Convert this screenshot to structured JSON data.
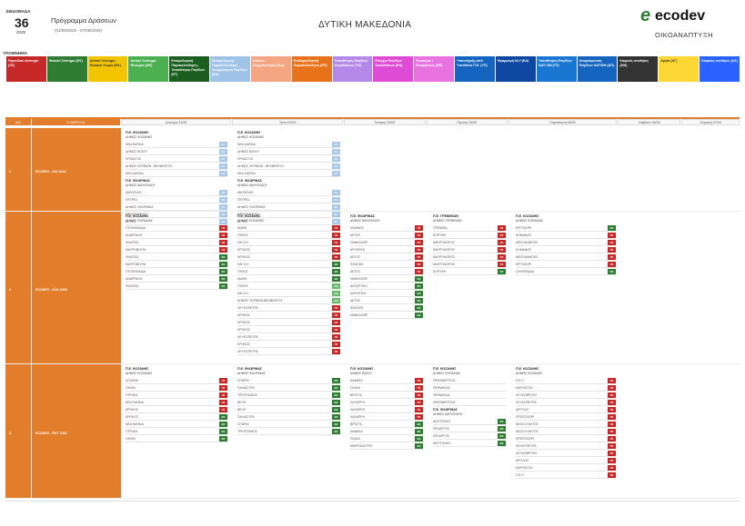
{
  "header": {
    "week_label": "ΕΒΔΟΜΑΔΑ",
    "week_number": "36",
    "year": "2025",
    "program_title": "Πρόγραμμα Δράσεων",
    "date_range": "(01/09/2025 - 07/09/2025)",
    "region": "ΔΥΤΙΚΗ ΜΑΚΕΔΟΝΙΑ"
  },
  "logo": {
    "brand": "ecodev",
    "subtitle": "ΟΙΚΟΑΝΑΠΤΥΞΗ",
    "color": "#2e7d32"
  },
  "legend": {
    "title": "ΥΠΟΜΝΗΜΑ",
    "items": [
      {
        "label": "Περιοδικό σύστημα (ΠΣ)",
        "color": "#c62828"
      },
      {
        "label": "Φυσικό Σύστημα (ΦΣ)",
        "color": "#2e7d32"
      },
      {
        "label": "Αστικό Σύστημα - Φυσικοί Χώροι (ΦΧ)",
        "color": "#f2c500"
      },
      {
        "label": "Αστικό Σύστημα - Φυτώρια (ΑΦ)",
        "color": "#4caf50"
      },
      {
        "label": "Εντομολογική Παρακολούθηση - Τοποθέτηση Παγίδων (ΕΤ)",
        "color": "#1b5e20"
      },
      {
        "label": "Εντομολογική Παρακολούθηση - Αναρρόφηση Παγίδων (ΕΑ)",
        "color": "#9ec3e6"
      },
      {
        "label": "Κόκκοι / Δειγματοληψία (ΚΔ)",
        "color": "#f4a582"
      },
      {
        "label": "Επιδημιολογική Παρακολούθηση (ΕΠ)",
        "color": "#e8731a"
      },
      {
        "label": "Τοποθέτηση Παγίδων Ωοκαθίσεων (ΤΩ)",
        "color": "#b388e8"
      },
      {
        "label": "Ελεγχοι Παγίδων Ωοκαθίσεων (ΕΩ)",
        "color": "#e04bd6"
      },
      {
        "label": "Ψεκασμοί / Επεμβάσεις (ΨΕ)",
        "color": "#e873e0"
      },
      {
        "label": "Υποστήριξη από Υπεύθυνο Π.Ε. (ΥΠ)",
        "color": "#1565c0"
      },
      {
        "label": "Εφαρμογή ULV (ΕΑ)",
        "color": "#0d47a1"
      },
      {
        "label": "Τοποθέτηση Παγίδων GAT/ SM (ΤΠ)",
        "color": "#1976d2"
      },
      {
        "label": "Απομάκρυνση Παγίδων GAT/SM (ΑΠ)",
        "color": "#1565c0"
      },
      {
        "label": "Καιρικές συνθήκες (ΚΜ)",
        "color": "#333333"
      },
      {
        "label": "Αργία (ΑΓ)",
        "color": "#fdd835"
      },
      {
        "label": "Καιρικές συνθήκες (ΚΣ)",
        "color": "#2962ff"
      }
    ]
  },
  "table": {
    "headers": [
      "Α/Α",
      "ΣΥΝΕΡΓΕΙΟ",
      "Δευτέρα 01/09",
      "Τρίτη 02/09",
      "Τετάρτη 03/09",
      "Πέμπτη 04/09",
      "Παρασκευή 05/09",
      "Σάββατο 06/09",
      "Κυριακή 07/09"
    ],
    "rows": [
      {
        "aa": "1",
        "group": "ECODEV - ΚΙΑ 9144"
      },
      {
        "aa": "2",
        "group": "ECODEV - ΚΖΑ 6494"
      },
      {
        "aa": "3",
        "group": "ECODEV - ΕΚΤ 7363"
      }
    ]
  },
  "cells": {
    "r1d1": [
      {
        "h": "Π.Ε. ΚΟΖΑΝΗΣ",
        "s": "ΔΗΜΟΣ ΚΟΖΑΝΗΣ",
        "items": [
          [
            "ΝΕΑ ΚΑΡΔΙΑ",
            "ΕΑ"
          ],
          [
            "ΔΗΜΟΣ ΒΟΙΟΥ",
            "ΕΑ"
          ],
          [
            "ΠΡΟΑΣΤΙΟ",
            "ΕΑ"
          ],
          [
            "ΔΗΜΟΣ ΣΕΡΒΙΩΝ - ΒΕΛΒΕΝΤΟΥ",
            "ΕΑ"
          ],
          [
            "ΝΕΑ ΚΑΡΔΙΑ",
            "ΕΑ"
          ]
        ]
      },
      {
        "h": "Π.Ε. ΦΛΩΡΙΝΑΣ",
        "s": "ΔΗΜΟΣ ΑΜΥΝΤΑΙΟΥ",
        "items": [
          [
            "ΑΜΥΝΤΑΙΟ",
            "ΕΑ"
          ],
          [
            "ΠΕΤΡΕΣ",
            "ΕΑ"
          ],
          [
            "ΔΗΜΟΣ ΦΛΩΡΙΝΑΣ",
            "ΕΑ"
          ],
          [
            "ΜΕΣΟΚΑΜΠΟΣ",
            "ΕΑ"
          ],
          [
            "ΑΕΤΟΣ",
            "ΕΑ"
          ]
        ]
      }
    ],
    "r1d2": [
      {
        "h": "Π.Ε. ΚΟΖΑΝΗΣ",
        "s": "ΔΗΜΟΣ ΚΟΖΑΝΗΣ",
        "items": [
          [
            "ΝΕΑ ΚΑΡΔΙΑ",
            "ΕΑ"
          ],
          [
            "ΔΗΜΟΣ ΒΟΙΟΥ",
            "ΕΑ"
          ],
          [
            "ΠΡΟΑΣΤΙΟ",
            "ΕΑ"
          ],
          [
            "ΔΗΜΟΣ ΣΕΡΒΙΩΝ - ΒΕΛΒΕΝΤΟΥ",
            "ΕΑ"
          ],
          [
            "ΝΕΑ ΚΑΡΔΙΑ",
            "ΕΑ"
          ]
        ]
      },
      {
        "h": "Π.Ε. ΦΛΩΡΙΝΑΣ",
        "s": "ΔΗΜΟΣ ΑΜΥΝΤΑΙΟΥ",
        "items": [
          [
            "ΑΜΥΝΤΑΙΟ",
            "ΕΑ"
          ],
          [
            "ΠΕΤΡΕΣ",
            "ΕΑ"
          ],
          [
            "ΔΗΜΟΣ ΦΛΩΡΙΝΑΣ",
            "ΕΑ"
          ],
          [
            "ΜΕΣΟΚΑΜΠΟΣ",
            "ΕΑ"
          ],
          [
            "ΑΕΤΟΣ",
            "ΕΑ"
          ]
        ]
      }
    ],
    "r2d1": [
      {
        "h": "Π.Ε. ΚΟΖΑΝΗΣ",
        "s": "ΔΗΜΟΣ ΕΟΡΔΑΙΑΣ",
        "items": [
          [
            "ΠΤΟΛΕΜΑΙΔΑ",
            "ΠΣ"
          ],
          [
            "ΑΝΑΡΡΑΧΗ",
            "ΠΣ"
          ],
          [
            "ΦΙΛΩΤΑΣ",
            "ΠΣ"
          ],
          [
            "ΜΑΥΡΟΒΟΥΝΙ",
            "ΠΣ"
          ],
          [
            "ΦΙΛΩΤΑΣ",
            "ΦΣ"
          ],
          [
            "ΜΑΥΡΟΒΟΥΝΙ",
            "ΦΣ"
          ],
          [
            "ΠΤΟΛΕΜΑΙΔΑ",
            "ΦΣ"
          ],
          [
            "ΑΝΑΡΡΑΧΗ",
            "ΦΣ"
          ],
          [
            "ΦΙΛΩΤΑΣ",
            "ΦΣ"
          ]
        ]
      }
    ],
    "r2d2": [
      {
        "h": "Π.Ε. ΚΟΖΑΝΗΣ",
        "s": "ΔΗΜΟΣ ΚΟΖΑΝΗΣ",
        "items": [
          [
            "ΑΙΑΝΗ",
            "ΠΣ"
          ],
          [
            "ΓΗΦΟΣ",
            "ΠΣ"
          ],
          [
            "ΚΑΙ ΣΛΙ",
            "ΠΣ"
          ],
          [
            "ΚΡΟΚΟΣ",
            "ΠΣ"
          ],
          [
            "ΚΡΟΚΟΣ",
            "ΠΣ"
          ],
          [
            "ΚΑΙ ΣΛΙ",
            "ΦΣ"
          ],
          [
            "ΓΗΦΟΣ",
            "ΦΣ"
          ],
          [
            "ΑΙΑΝΗ",
            "ΦΣ"
          ],
          [
            "ΓΗΦΟΣ",
            "ΑΦ"
          ],
          [
            "ΚΑΙ ΣΛΙ",
            "ΑΦ"
          ],
          [
            "ΔΗΜΟΣ ΣΕΡΒΙΩΝ-ΒΕΛΒΕΝΤΟΥ",
            "ΑΦ"
          ],
          [
            "ΛΕΥΚΟΠΕΤΡΑ",
            "ΠΣ"
          ],
          [
            "ΚΡΟΚΟΣ",
            "ΠΣ"
          ],
          [
            "ΚΡΟΚΟΣ",
            "ΠΣ"
          ],
          [
            "ΚΡΟΚΟΣ",
            "ΠΣ"
          ],
          [
            "ΛΕΥΚΟΠΕΤΡΑ",
            "ΠΣ"
          ],
          [
            "ΚΡΟΚΟΣ",
            "ΠΣ"
          ],
          [
            "ΛΕΥΚΟΠΕΤΡΑ",
            "ΠΣ"
          ]
        ]
      }
    ],
    "r2d3": [
      {
        "h": "Π.Ε. ΦΛΩΡΙΝΑΣ",
        "s": "ΔΗΜΟΣ ΑΜΥΝΤΑΙΟΥ",
        "items": [
          [
            "ΛΙΝΑΝΟΣ",
            "ΠΣ"
          ],
          [
            "ΑΕΤΟΣ",
            "ΠΣ"
          ],
          [
            "ΛΙΜΝΟΧΩΡΙ",
            "ΠΣ"
          ],
          [
            "ΑΡΧΟΝΤΑ",
            "ΠΣ"
          ],
          [
            "ΑΕΤΟΣ",
            "ΠΣ"
          ],
          [
            "ΦΙΛΩΤΑΣ",
            "ΠΣ"
          ],
          [
            "ΑΕΤΟΣ",
            "ΠΣ"
          ],
          [
            "ΛΙΜΝΟΧΩΡΙ",
            "ΦΣ"
          ],
          [
            "ΑΝΤΑΡΤΙΚΟ",
            "ΦΣ"
          ],
          [
            "ΑΜΥΝΤΑΙΟ",
            "ΦΣ"
          ],
          [
            "ΑΕΤΟΣ",
            "ΦΣ"
          ],
          [
            "ΦΙΛΩΤΑΣ",
            "ΦΣ"
          ],
          [
            "ΛΙΜΝΟΧΩΡΙ",
            "ΦΣ"
          ]
        ]
      }
    ],
    "r2d4": [
      {
        "h": "Π.Ε. ΓΡΕΒΕΝΩΝ",
        "s": "ΔΗΜΟΣ ΓΡΕΒΕΝΩΝ",
        "items": [
          [
            "ΓΡΕΒΕΝΑ",
            "ΠΣ"
          ],
          [
            "ΚΟΡΥΦΗ",
            "ΠΣ"
          ],
          [
            "ΜΑΥΡΟΝΟΡΟΣ",
            "ΠΣ"
          ],
          [
            "ΜΑΥΡΟΝΟΡΟΣ",
            "ΠΣ"
          ],
          [
            "ΜΑΥΡΟΝΟΡΟΣ",
            "ΠΣ"
          ],
          [
            "ΜΑΥΡΟΝΟΡΟΣ",
            "ΠΣ"
          ],
          [
            "ΚΟΡΥΦΗ",
            "ΦΣ"
          ]
        ]
      }
    ],
    "r2d5": [
      {
        "h": "Π.Ε. ΚΟΖΑΝΗΣ",
        "s": "ΔΗΜΟΣ ΕΟΡΔΑΙΑΣ",
        "items": [
          [
            "ΕΡΓΟΧΩΡΙ",
            "ΦΣ"
          ],
          [
            "ΚΟΜΑΝΟΣ",
            "ΠΣ"
          ],
          [
            "ΜΕΣΟΚΑΜΠΟΣ",
            "ΠΣ"
          ],
          [
            "ΚΟΜΑΝΟΣ",
            "ΠΣ"
          ],
          [
            "ΜΕΣΟΚΑΜΠΟΣ",
            "ΠΣ"
          ],
          [
            "ΕΡΓΟΧΩΡΙ",
            "ΠΣ"
          ],
          [
            "ΟΛΥΜΠΙΑΔΑ",
            "ΦΣ"
          ]
        ]
      }
    ],
    "r3d1": [
      {
        "h": "Π.Ε. ΚΟΖΑΝΗΣ",
        "s": "ΔΗΜΟΣ ΚΟΖΑΝΗΣ",
        "items": [
          [
            "ΚΟΖΑΝΗ",
            "ΠΣ"
          ],
          [
            "ΟΙΚΟΝ",
            "ΠΣ"
          ],
          [
            "ΠΤΕΛΕΑ",
            "ΠΣ"
          ],
          [
            "ΝΕΑ ΚΑΡΔΙΑ",
            "ΠΣ"
          ],
          [
            "ΚΡΟΚΟΣ",
            "ΠΣ"
          ],
          [
            "ΚΡΟΚΟΣ",
            "ΦΣ"
          ],
          [
            "ΝΕΑ ΚΑΡΔΙΑ",
            "ΦΣ"
          ],
          [
            "ΠΤΕΛΕΑ",
            "ΦΣ"
          ],
          [
            "ΟΙΚΟΝ",
            "ΦΣ"
          ]
        ]
      }
    ],
    "r3d2": [
      {
        "h": "Π.Ε. ΦΛΩΡΙΝΑΣ",
        "s": "ΔΗΜΟΣ ΦΛΩΡΙΝΑΣ",
        "items": [
          [
            "ΣΙΤΑΡΙΑ",
            "ΦΣ"
          ],
          [
            "ΠΑΛΑΙΣΤΡΑ",
            "ΦΣ"
          ],
          [
            "ΤΡΙΠΟΤΑΜΟΣ",
            "ΦΣ"
          ],
          [
            "ΒΕΥΗ",
            "ΦΣ"
          ],
          [
            "ΒΕΥΗ",
            "ΦΣ"
          ],
          [
            "ΠΑΛΑΙΣΤΡΑ",
            "ΦΣ"
          ],
          [
            "ΣΙΤΑΡΙΑ",
            "ΦΣ"
          ],
          [
            "ΤΡΙΠΟΤΑΜΟΣ",
            "ΦΣ"
          ]
        ]
      }
    ],
    "r3d3": [
      {
        "h": "Π.Ε. ΚΟΖΑΝΗΣ",
        "s": "ΔΗΜΟΣ ΒΟΙΟΥ",
        "items": [
          [
            "ΝΑΜΑΤΑ",
            "ΠΣ"
          ],
          [
            "ΣΙΣΑΝΙ",
            "ΠΣ"
          ],
          [
            "ΒΡΟΓΓΑ",
            "ΠΣ"
          ],
          [
            "ΧΑΛΚΕΡΗ",
            "ΠΣ"
          ],
          [
            "ΧΑΛΚΕΡΗ",
            "ΠΣ"
          ],
          [
            "ΧΑΛΚΕΡΗ",
            "ΠΣ"
          ],
          [
            "ΒΡΟΓΓΑ",
            "ΦΣ"
          ],
          [
            "ΝΑΜΑΤΑ",
            "ΦΣ"
          ],
          [
            "ΣΙΣΑΝΙ",
            "ΦΣ"
          ],
          [
            "ΜΙΚΡΟΚΑΣΤΡΟ",
            "ΦΣ"
          ]
        ]
      }
    ],
    "r3d4": [
      {
        "h": "Π.Ε. ΚΟΖΑΝΗΣ",
        "s": "ΔΗΜΟΣ ΕΟΡΔΑΙΑΣ",
        "items": [
          [
            "ΠΕΝΤΑΒΡΥΣΟΣ",
            ""
          ],
          [
            "ΠΕΡΔΙΚΚΑΣ",
            ""
          ],
          [
            "ΠΕΡΔΙΚΚΑΣ",
            ""
          ],
          [
            "ΠΕΝΤΑΒΡΥΣΟΣ",
            ""
          ]
        ]
      },
      {
        "h": "Π.Ε. ΦΛΩΡΙΝΑΣ",
        "s": "ΔΗΜΟΣ ΑΜΥΝΤΑΙΟΥ",
        "items": [
          [
            "ΑΝΤΙΓΟΝΟΣ",
            "ΦΣ"
          ],
          [
            "ΠΕΛΑΡΓΟΣ",
            "ΦΣ"
          ],
          [
            "ΠΕΛΑΡΓΟΣ",
            "ΦΣ"
          ],
          [
            "ΑΝΤΙΓΟΝΟΣ",
            "ΦΣ"
          ]
        ]
      }
    ],
    "r3d5": [
      {
        "h": "Π.Ε. ΚΟΖΑΝΗΣ",
        "s": "ΔΗΜΟΣ ΚΟΖΑΝΗΣ",
        "items": [
          [
            "Ζ.Ε.Π.",
            "ΠΣ"
          ],
          [
            "ΚΑΡΥΔΙΤΣΑ",
            "ΠΣ"
          ],
          [
            "ΛΕΥΚΟΒΡΥΣΗ",
            "ΠΣ"
          ],
          [
            "ΛΕΥΚΟΠΕΤΡΑ",
            "ΠΣ"
          ],
          [
            "ΑΡΓΙΛΟΣ",
            "ΠΣ"
          ],
          [
            "ΠΡΩΤΟΧΩΡΙ",
            "ΠΣ"
          ],
          [
            "ΝΕΟΣ ΚΛΕΙΤΟΣ",
            "ΠΣ"
          ],
          [
            "ΝΕΟΣ ΚΛΕΙΤΟΣ",
            "ΠΣ"
          ],
          [
            "ΠΡΩΤΟΧΩΡΙ",
            "ΠΣ"
          ],
          [
            "ΛΕΥΚΟΠΕΤΡΑ",
            "ΠΣ"
          ],
          [
            "ΛΕΥΚΟΒΡΥΣΗ",
            "ΠΣ"
          ],
          [
            "ΑΡΓΙΛΟΣ",
            "ΠΣ"
          ],
          [
            "ΚΑΡΥΔΙΤΣΑ",
            "ΠΣ"
          ],
          [
            "Ζ.Ε.Π.",
            "ΠΣ"
          ]
        ]
      }
    ]
  }
}
